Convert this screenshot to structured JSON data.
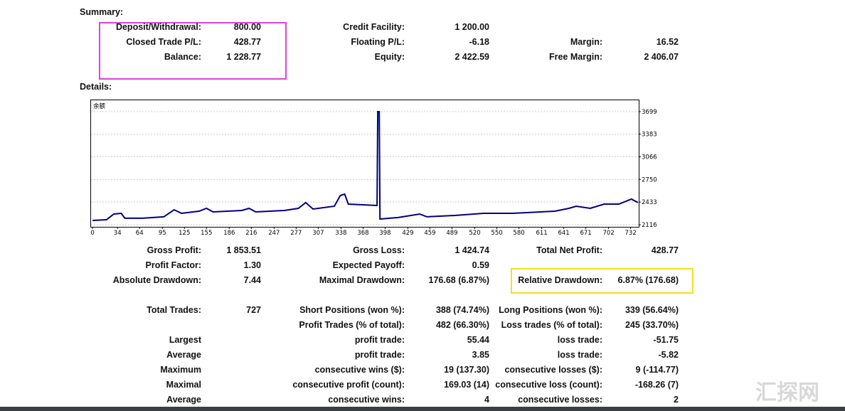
{
  "summary": {
    "title": "Summary:",
    "rows": [
      [
        {
          "label": "Deposit/Withdrawal:",
          "value": "800.00"
        },
        {
          "label": "Credit Facility:",
          "value": "1 200.00"
        }
      ],
      [
        {
          "label": "Closed Trade P/L:",
          "value": "428.77"
        },
        {
          "label": "Floating P/L:",
          "value": "-6.18"
        },
        {
          "label": "Margin:",
          "value": "16.52"
        }
      ],
      [
        {
          "label": "Balance:",
          "value": "1 228.77"
        },
        {
          "label": "Equity:",
          "value": "2 422.59"
        },
        {
          "label": "Free Margin:",
          "value": "2 406.07"
        }
      ]
    ]
  },
  "details_title": "Details:",
  "chart_data": {
    "type": "line",
    "label": "余额",
    "x": [
      0,
      19,
      29,
      39,
      44,
      68,
      97,
      111,
      121,
      145,
      155,
      164,
      203,
      213,
      222,
      261,
      280,
      290,
      300,
      329,
      337,
      343,
      348,
      387,
      388,
      390,
      391,
      416,
      445,
      455,
      493,
      532,
      571,
      629,
      648,
      658,
      677,
      696,
      716,
      733,
      742
    ],
    "series": [
      {
        "name": "余额",
        "color": "#000080",
        "values": [
          2176,
          2186,
          2265,
          2275,
          2206,
          2206,
          2226,
          2325,
          2275,
          2305,
          2345,
          2295,
          2315,
          2345,
          2295,
          2315,
          2345,
          2425,
          2335,
          2375,
          2524,
          2544,
          2405,
          2385,
          3699,
          3699,
          2196,
          2216,
          2265,
          2226,
          2245,
          2275,
          2275,
          2305,
          2345,
          2375,
          2345,
          2405,
          2405,
          2474,
          2425
        ]
      }
    ],
    "xlim": [
      -2,
      743
    ],
    "ylim": [
      2086,
      3868
    ],
    "xticks": [
      0,
      34,
      64,
      95,
      125,
      155,
      186,
      216,
      247,
      277,
      307,
      338,
      368,
      398,
      429,
      459,
      489,
      520,
      550,
      580,
      611,
      641,
      671,
      702,
      732
    ],
    "yticks": [
      2116,
      2433,
      2750,
      3066,
      3383,
      3699
    ],
    "grid": true
  },
  "stats": {
    "groups": [
      [
        [
          {
            "label": "Gross Profit:",
            "value": "1 853.51"
          },
          {
            "label": "Gross Loss:",
            "value": "1 424.74"
          },
          {
            "label": "Total Net Profit:",
            "value": "428.77"
          }
        ],
        [
          {
            "label": "Profit Factor:",
            "value": "1.30"
          },
          {
            "label": "Expected Payoff:",
            "value": "0.59"
          }
        ],
        [
          {
            "label": "Absolute Drawdown:",
            "value": "7.44"
          },
          {
            "label": "Maximal Drawdown:",
            "value": "176.68 (6.87%)"
          },
          {
            "label": "Relative Drawdown:",
            "value": "6.87% (176.68)"
          }
        ]
      ],
      [
        [
          {
            "label": "Total Trades:",
            "value": "727"
          },
          {
            "label": "Short Positions (won %):",
            "value": "388 (74.74%)"
          },
          {
            "label": "Long Positions (won %):",
            "value": "339 (56.64%)"
          }
        ],
        [
          null,
          {
            "label": "Profit Trades (% of total):",
            "value": "482 (66.30%)"
          },
          {
            "label": "Loss trades (% of total):",
            "value": "245 (33.70%)"
          }
        ],
        [
          {
            "label": "Largest"
          },
          {
            "label": "profit trade:",
            "value": "55.44"
          },
          {
            "label": "loss trade:",
            "value": "-51.75"
          }
        ],
        [
          {
            "label": "Average"
          },
          {
            "label": "profit trade:",
            "value": "3.85"
          },
          {
            "label": "loss trade:",
            "value": "-5.82"
          }
        ],
        [
          {
            "label": "Maximum"
          },
          {
            "label": "consecutive wins ($):",
            "value": "19 (137.30)"
          },
          {
            "label": "consecutive losses ($):",
            "value": "9 (-114.77)"
          }
        ],
        [
          {
            "label": "Maximal"
          },
          {
            "label": "consecutive profit (count):",
            "value": "169.03 (14)"
          },
          {
            "label": "consecutive loss (count):",
            "value": "-168.26 (7)"
          }
        ],
        [
          {
            "label": "Average"
          },
          {
            "label": "consecutive wins:",
            "value": "4"
          },
          {
            "label": "consecutive losses:",
            "value": "2"
          }
        ]
      ]
    ]
  },
  "watermark": "汇探网"
}
